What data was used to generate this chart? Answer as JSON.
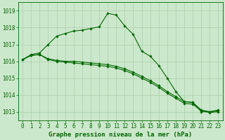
{
  "background_color": "#cce8cc",
  "grid_color": "#aaccaa",
  "line_color": "#006600",
  "line1": [
    1016.1,
    1016.4,
    1016.5,
    1017.0,
    1017.5,
    1017.65,
    1017.8,
    1017.85,
    1017.95,
    1018.05,
    1018.85,
    1018.75,
    1018.1,
    1017.6,
    1016.6,
    1016.3,
    1015.75,
    1015.0,
    1014.2,
    1013.6,
    1013.55,
    1013.0,
    1013.0,
    1013.1
  ],
  "line2": [
    1016.1,
    1016.35,
    1016.4,
    1016.15,
    1016.05,
    1016.0,
    1016.0,
    1015.95,
    1015.9,
    1015.85,
    1015.8,
    1015.7,
    1015.55,
    1015.35,
    1015.1,
    1014.85,
    1014.55,
    1014.2,
    1013.9,
    1013.6,
    1013.55,
    1013.1,
    1013.0,
    1013.05
  ],
  "line3": [
    1016.1,
    1016.35,
    1016.4,
    1016.1,
    1016.0,
    1015.95,
    1015.9,
    1015.85,
    1015.8,
    1015.75,
    1015.7,
    1015.6,
    1015.45,
    1015.25,
    1015.0,
    1014.75,
    1014.45,
    1014.1,
    1013.8,
    1013.5,
    1013.45,
    1013.05,
    1012.95,
    1013.0
  ],
  "xlabel": "Graphe pression niveau de la mer (hPa)",
  "ylim": [
    1012.5,
    1019.5
  ],
  "xlim": [
    -0.5,
    23.5
  ],
  "yticks": [
    1013,
    1014,
    1015,
    1016,
    1017,
    1018,
    1019
  ],
  "xticks": [
    0,
    1,
    2,
    3,
    4,
    5,
    6,
    7,
    8,
    9,
    10,
    11,
    12,
    13,
    14,
    15,
    16,
    17,
    18,
    19,
    20,
    21,
    22,
    23
  ],
  "xtick_labels": [
    "0",
    "1",
    "2",
    "3",
    "4",
    "5",
    "6",
    "7",
    "8",
    "9",
    "10",
    "11",
    "12",
    "13",
    "14",
    "15",
    "16",
    "17",
    "18",
    "19",
    "20",
    "21",
    "22",
    "23"
  ],
  "marker": "D",
  "marker_size": 1.8,
  "linewidth": 0.8,
  "tick_fontsize": 5.5,
  "xlabel_fontsize": 6.5
}
